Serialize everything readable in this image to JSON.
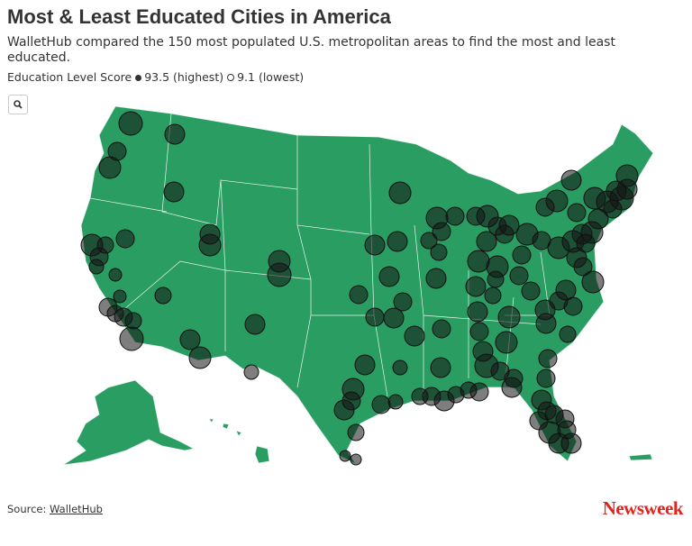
{
  "header": {
    "title": "Most & Least Educated Cities in America",
    "subtitle": "WalletHub compared the 150 most populated U.S. metropolitan areas to find the most and least educated.",
    "legend": {
      "label": "Education Level Score",
      "max_label": "93.5 (highest)",
      "min_label": "9.1 (lowest)"
    }
  },
  "footer": {
    "source_prefix": "Source:",
    "source_link": "WalletHub",
    "brand": "Newsweek"
  }
}
